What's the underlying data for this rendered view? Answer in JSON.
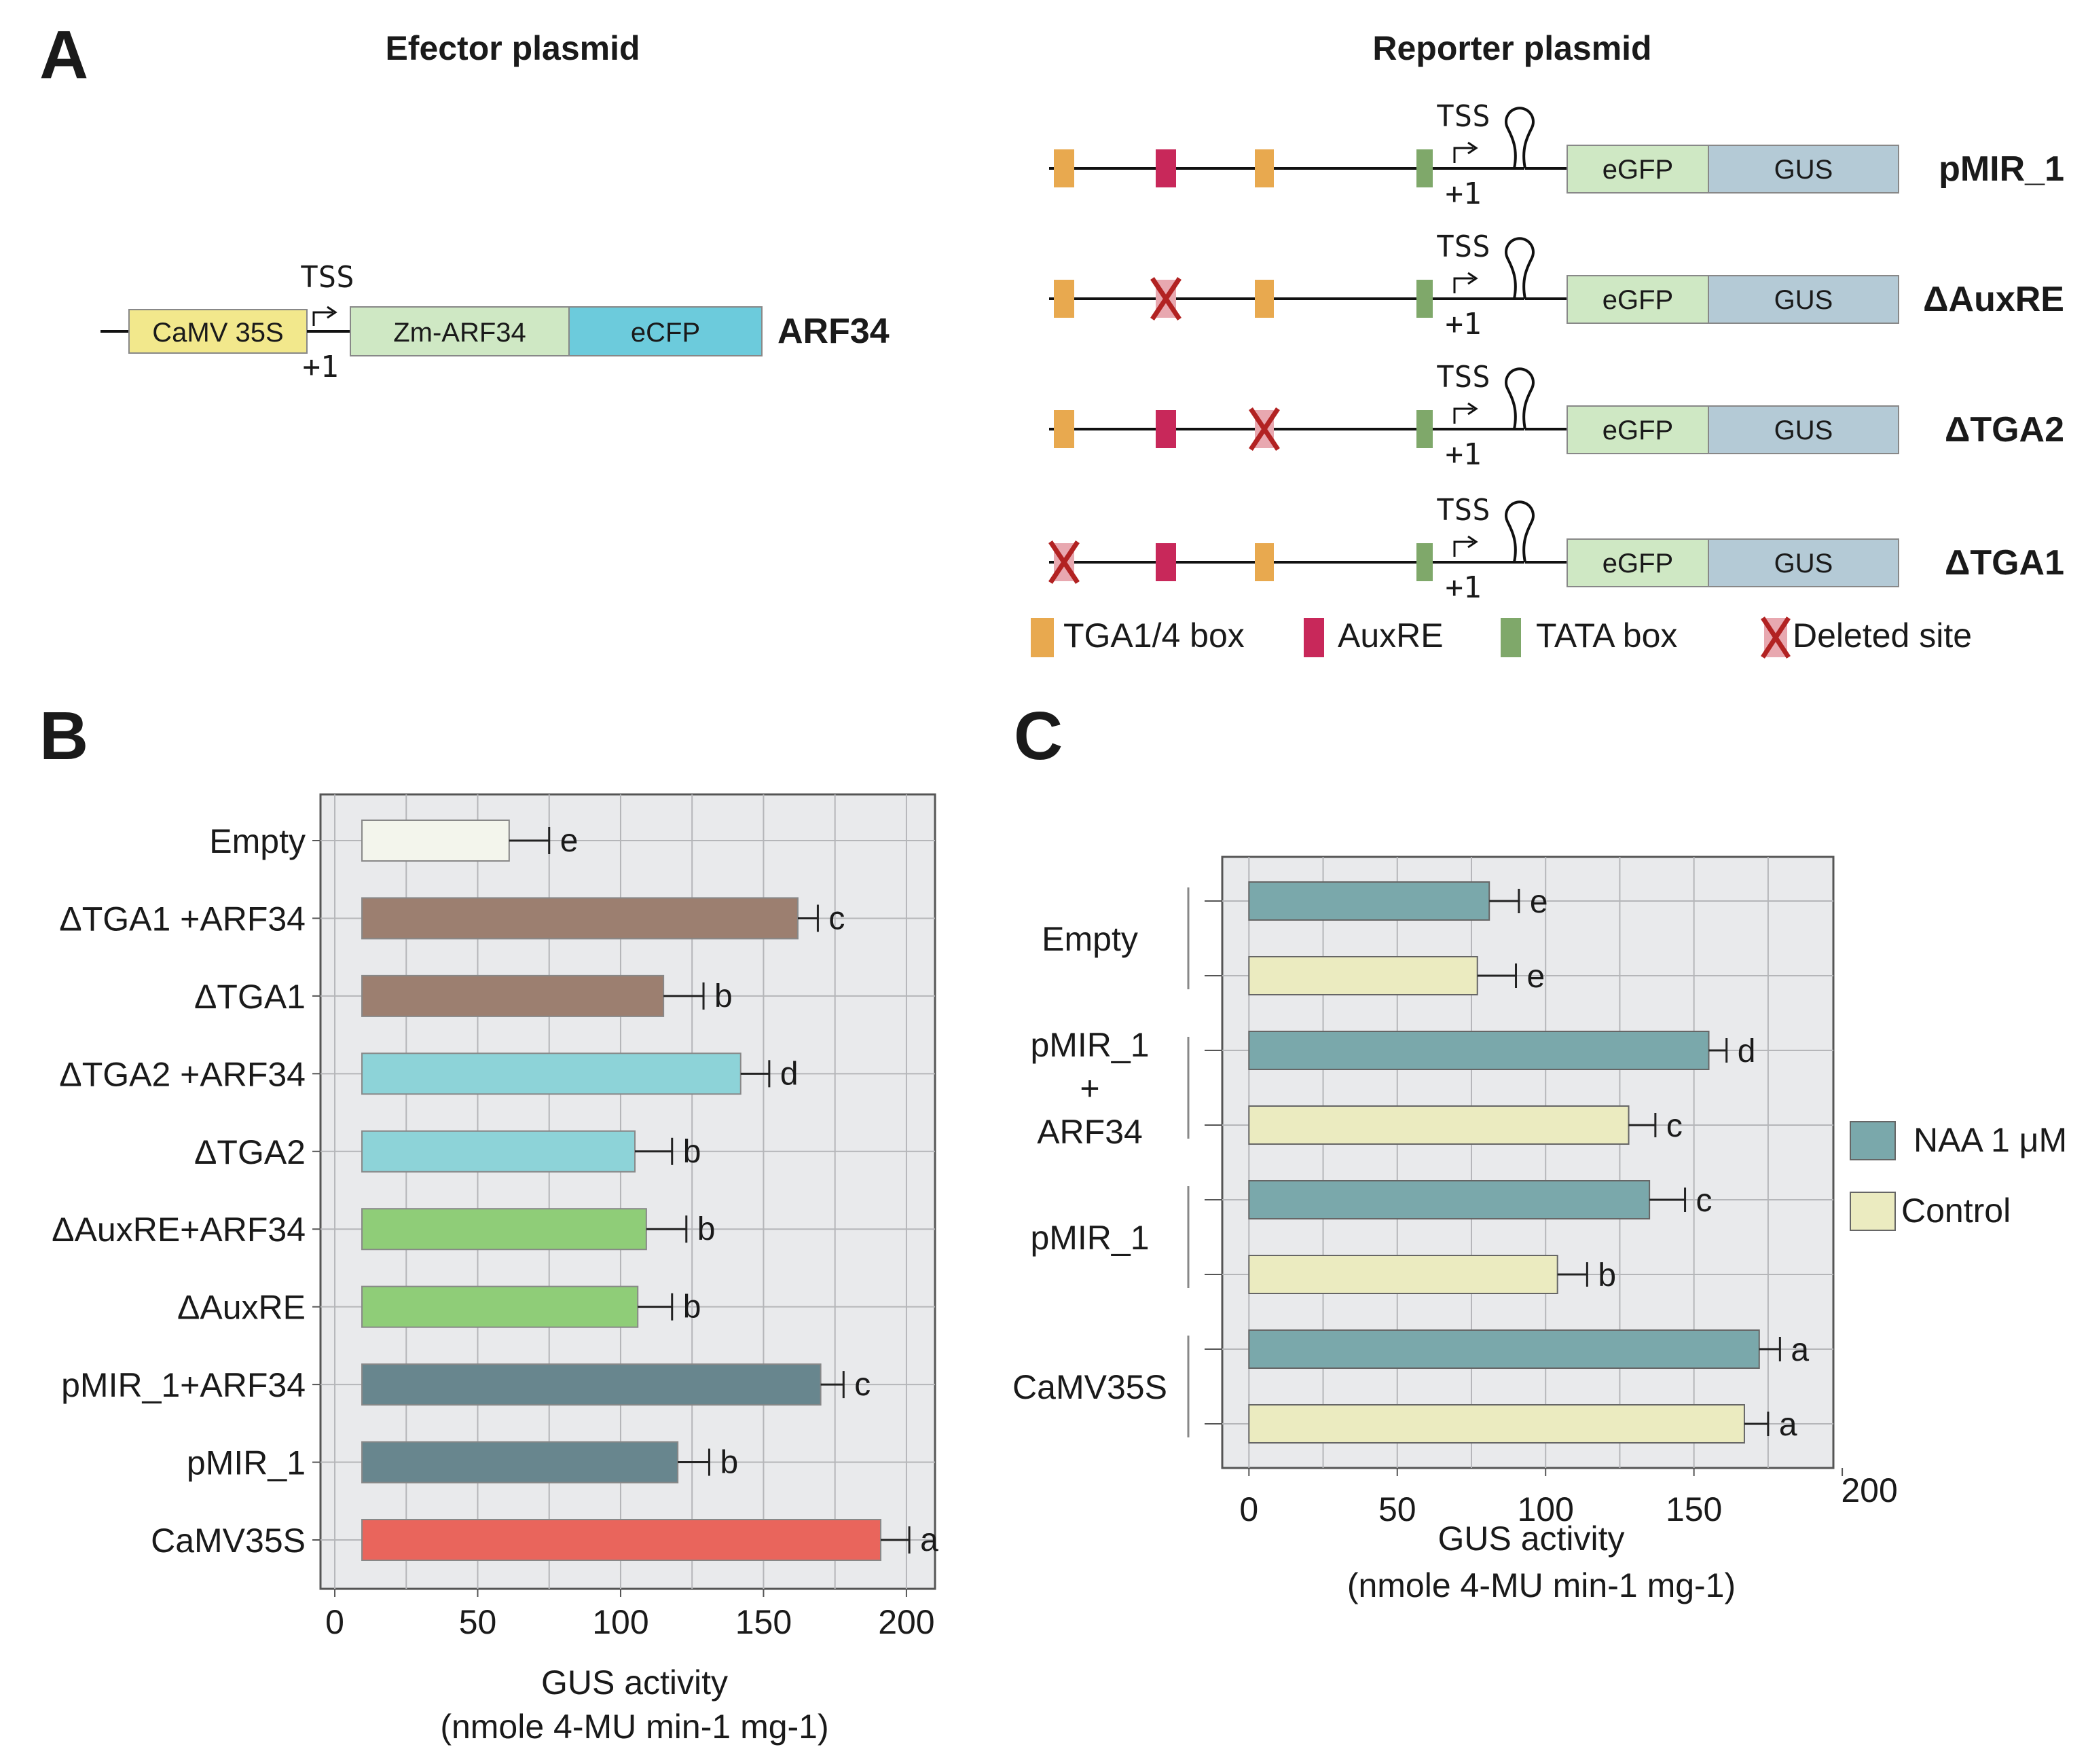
{
  "panel_a": {
    "letter": "A",
    "effector_title": "Efector plasmid",
    "reporter_title": "Reporter plasmid",
    "effector": {
      "promoter": "CaMV 35S",
      "tss": "TSS",
      "plus_one": "+1",
      "gene": "Zm-ARF34",
      "tag": "eCFP",
      "name": "ARF34"
    },
    "reporter_common": {
      "tss": "TSS",
      "plus_one": "+1",
      "egfp": "eGFP",
      "gus": "GUS"
    },
    "constructs": [
      {
        "name": "pMIR_1",
        "deleted": "none"
      },
      {
        "name": "ΔAuxRE",
        "deleted": "auxre"
      },
      {
        "name": "ΔTGA2",
        "deleted": "tga2"
      },
      {
        "name": "ΔTGA1",
        "deleted": "tga1"
      }
    ],
    "legend": [
      {
        "label": "TGA1/4 box",
        "color": "#e8a94f"
      },
      {
        "label": "AuxRE",
        "color": "#c8285a"
      },
      {
        "label": "TATA box",
        "color": "#7fa86a"
      },
      {
        "label": "Deleted site",
        "color": "#b22222"
      }
    ]
  },
  "panel_b": {
    "letter": "B"
  },
  "panel_c": {
    "letter": "C"
  },
  "chart_data": [
    {
      "type": "bar",
      "orientation": "horizontal",
      "xlabel": "GUS activity",
      "xlabel_units": "(nmole 4-MU min-1 mg-1)",
      "xlim": [
        -5,
        210
      ],
      "xticks": [
        0,
        50,
        100,
        150,
        200
      ],
      "grid": true,
      "categories": [
        "Empty",
        "ΔTGA1 +ARF34",
        "ΔTGA1",
        "ΔTGA2 +ARF34",
        "ΔTGA2",
        "ΔAuxRE+ARF34",
        "ΔAuxRE",
        "pMIR_1+ARF34",
        "pMIR_1",
        "CaMV35S"
      ],
      "values": [
        61,
        162,
        115,
        142,
        105,
        109,
        106,
        170,
        120,
        191
      ],
      "errors": [
        14,
        7,
        14,
        10,
        13,
        14,
        12,
        8,
        11,
        10
      ],
      "significance": [
        "e",
        "c",
        "b",
        "d",
        "b",
        "b",
        "b",
        "c",
        "b",
        "a"
      ],
      "colors": [
        "#f3f5ec",
        "#9c7f70",
        "#9c7f70",
        "#8dd3d8",
        "#8dd3d8",
        "#8fcd78",
        "#8fcd78",
        "#68868e",
        "#68868e",
        "#e9655c"
      ]
    },
    {
      "type": "bar",
      "orientation": "horizontal",
      "grouped": true,
      "xlabel": "GUS activity",
      "xlabel_units": "(nmole 4-MU min-1 mg-1)",
      "xlim": [
        -9,
        197
      ],
      "xticks": [
        0,
        50,
        100,
        150,
        200
      ],
      "grid": true,
      "categories": [
        "Empty",
        "pMIR_1\n+\nARF34",
        "pMIR_1",
        "CaMV35S"
      ],
      "category_lines": [
        [
          "Empty"
        ],
        [
          "pMIR_1",
          "+",
          "ARF34"
        ],
        [
          "pMIR_1"
        ],
        [
          "CaMV35S"
        ]
      ],
      "series": [
        {
          "name": "NAA 1 μM",
          "color": "#7aa8ab",
          "values": [
            81,
            155,
            135,
            172
          ],
          "errors": [
            10,
            6,
            12,
            7
          ],
          "significance": [
            "e",
            "d",
            "c",
            "a"
          ]
        },
        {
          "name": "Control",
          "color": "#ebebc0",
          "values": [
            77,
            128,
            104,
            167
          ],
          "errors": [
            13,
            9,
            10,
            8
          ],
          "significance": [
            "e",
            "c",
            "b",
            "a"
          ]
        }
      ],
      "legend_position": "right"
    }
  ]
}
